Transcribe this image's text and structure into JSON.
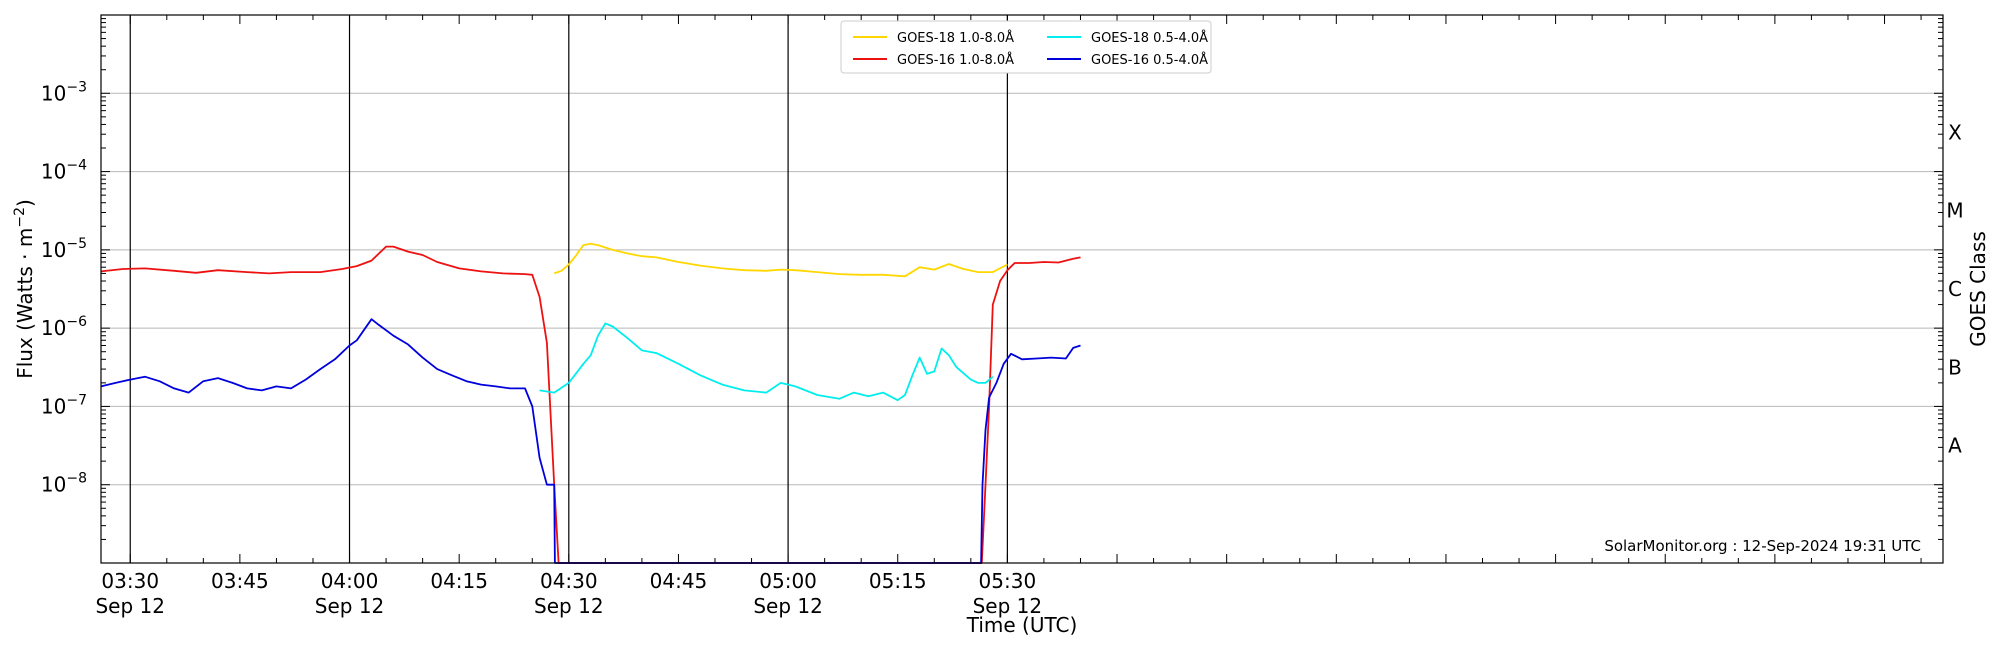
{
  "chart_data": {
    "type": "line",
    "xlabel": "Time (UTC)",
    "ylabel": "Flux (Watts · m",
    "ylabel_sup": "−2",
    "ylabel_close": ")",
    "y2label": "GOES Class",
    "watermark": "SolarMonitor.org : 12-Sep-2024 19:31 UTC",
    "x_range_minutes": [
      206,
      458
    ],
    "y_log_range": [
      -9,
      -2
    ],
    "grid": true,
    "legend_position": "top-center",
    "x_ticks": [
      {
        "minutes": 210,
        "time": "03:30",
        "date": "Sep 12"
      },
      {
        "minutes": 225,
        "time": "03:45",
        "date": ""
      },
      {
        "minutes": 240,
        "time": "04:00",
        "date": "Sep 12"
      },
      {
        "minutes": 255,
        "time": "04:15",
        "date": ""
      },
      {
        "minutes": 270,
        "time": "04:30",
        "date": "Sep 12"
      },
      {
        "minutes": 285,
        "time": "04:45",
        "date": ""
      },
      {
        "minutes": 300,
        "time": "05:00",
        "date": "Sep 12"
      },
      {
        "minutes": 315,
        "time": "05:15",
        "date": ""
      },
      {
        "minutes": 330,
        "time": "05:30",
        "date": "Sep 12"
      }
    ],
    "vertical_lines_minutes": [
      210,
      240,
      270,
      300,
      330
    ],
    "y_ticks": [
      {
        "exp": -8,
        "label": "10",
        "sup": "−8"
      },
      {
        "exp": -7,
        "label": "10",
        "sup": "−7"
      },
      {
        "exp": -6,
        "label": "10",
        "sup": "−6"
      },
      {
        "exp": -5,
        "label": "10",
        "sup": "−5"
      },
      {
        "exp": -4,
        "label": "10",
        "sup": "−4"
      },
      {
        "exp": -3,
        "label": "10",
        "sup": "−3"
      }
    ],
    "goes_classes": [
      {
        "label": "A",
        "exp": -7.5
      },
      {
        "label": "B",
        "exp": -6.5
      },
      {
        "label": "C",
        "exp": -5.5
      },
      {
        "label": "M",
        "exp": -4.5
      },
      {
        "label": "X",
        "exp": -3.5
      }
    ],
    "series": [
      {
        "name": "GOES-18 1.0-8.0Å",
        "color": "#ffd700",
        "points": [
          [
            268,
            5e-06
          ],
          [
            269,
            5.4e-06
          ],
          [
            270,
            6.5e-06
          ],
          [
            271,
            8.5e-06
          ],
          [
            272,
            1.15e-05
          ],
          [
            273,
            1.2e-05
          ],
          [
            274,
            1.15e-05
          ],
          [
            276,
            1e-05
          ],
          [
            278,
            9e-06
          ],
          [
            280,
            8.3e-06
          ],
          [
            282,
            8e-06
          ],
          [
            285,
            7e-06
          ],
          [
            288,
            6.3e-06
          ],
          [
            291,
            5.8e-06
          ],
          [
            294,
            5.5e-06
          ],
          [
            297,
            5.4e-06
          ],
          [
            299,
            5.6e-06
          ],
          [
            301,
            5.5e-06
          ],
          [
            304,
            5.2e-06
          ],
          [
            307,
            4.9e-06
          ],
          [
            310,
            4.8e-06
          ],
          [
            313,
            4.8e-06
          ],
          [
            316,
            4.6e-06
          ],
          [
            318,
            6e-06
          ],
          [
            320,
            5.6e-06
          ],
          [
            322,
            6.6e-06
          ],
          [
            324,
            5.7e-06
          ],
          [
            326,
            5.2e-06
          ],
          [
            328,
            5.2e-06
          ],
          [
            330,
            6.5e-06
          ]
        ]
      },
      {
        "name": "GOES-16 1.0-8.0Å",
        "color": "#ee1111",
        "points": [
          [
            206,
            5.3e-06
          ],
          [
            209,
            5.7e-06
          ],
          [
            212,
            5.8e-06
          ],
          [
            216,
            5.4e-06
          ],
          [
            219,
            5.1e-06
          ],
          [
            222,
            5.5e-06
          ],
          [
            226,
            5.2e-06
          ],
          [
            229,
            5e-06
          ],
          [
            232,
            5.2e-06
          ],
          [
            236,
            5.2e-06
          ],
          [
            239,
            5.7e-06
          ],
          [
            241,
            6.2e-06
          ],
          [
            243,
            7.3e-06
          ],
          [
            245,
            1.1e-05
          ],
          [
            246,
            1.1e-05
          ],
          [
            248,
            9.5e-06
          ],
          [
            250,
            8.6e-06
          ],
          [
            252,
            7e-06
          ],
          [
            255,
            5.8e-06
          ],
          [
            258,
            5.3e-06
          ],
          [
            261,
            5e-06
          ],
          [
            264,
            4.9e-06
          ],
          [
            265,
            4.8e-06
          ],
          [
            266,
            2.5e-06
          ],
          [
            267,
            6.5e-07
          ],
          [
            268,
            1e-08
          ],
          [
            268.6,
            1e-09
          ],
          [
            326.5,
            1e-09
          ],
          [
            327,
            1e-08
          ],
          [
            327.5,
            1e-07
          ],
          [
            328,
            2e-06
          ],
          [
            329,
            4e-06
          ],
          [
            330,
            5.5e-06
          ],
          [
            331,
            6.8e-06
          ],
          [
            333,
            6.8e-06
          ],
          [
            335,
            7e-06
          ],
          [
            337,
            6.9e-06
          ],
          [
            339,
            7.7e-06
          ],
          [
            340,
            8e-06
          ]
        ]
      },
      {
        "name": "GOES-18 0.5-4.0Å",
        "color": "#00eeee",
        "points": [
          [
            266,
            1.6e-07
          ],
          [
            268,
            1.5e-07
          ],
          [
            270,
            2e-07
          ],
          [
            272,
            3.5e-07
          ],
          [
            273,
            4.5e-07
          ],
          [
            274,
            8e-07
          ],
          [
            275,
            1.15e-06
          ],
          [
            276,
            1.05e-06
          ],
          [
            278,
            7.5e-07
          ],
          [
            280,
            5.2e-07
          ],
          [
            282,
            4.8e-07
          ],
          [
            285,
            3.5e-07
          ],
          [
            288,
            2.5e-07
          ],
          [
            291,
            1.9e-07
          ],
          [
            294,
            1.6e-07
          ],
          [
            297,
            1.5e-07
          ],
          [
            299,
            2e-07
          ],
          [
            301,
            1.8e-07
          ],
          [
            304,
            1.4e-07
          ],
          [
            307,
            1.25e-07
          ],
          [
            309,
            1.5e-07
          ],
          [
            311,
            1.35e-07
          ],
          [
            313,
            1.5e-07
          ],
          [
            315,
            1.2e-07
          ],
          [
            316,
            1.4e-07
          ],
          [
            317,
            2.5e-07
          ],
          [
            318,
            4.2e-07
          ],
          [
            319,
            2.6e-07
          ],
          [
            320,
            2.8e-07
          ],
          [
            321,
            5.5e-07
          ],
          [
            322,
            4.5e-07
          ],
          [
            323,
            3.2e-07
          ],
          [
            325,
            2.2e-07
          ],
          [
            326,
            2e-07
          ],
          [
            327,
            2e-07
          ],
          [
            328,
            2.4e-07
          ]
        ]
      },
      {
        "name": "GOES-16 0.5-4.0Å",
        "color": "#0000dd",
        "points": [
          [
            206,
            1.8e-07
          ],
          [
            208,
            2e-07
          ],
          [
            210,
            2.2e-07
          ],
          [
            212,
            2.4e-07
          ],
          [
            214,
            2.1e-07
          ],
          [
            216,
            1.7e-07
          ],
          [
            218,
            1.5e-07
          ],
          [
            220,
            2.1e-07
          ],
          [
            222,
            2.3e-07
          ],
          [
            224,
            2e-07
          ],
          [
            226,
            1.7e-07
          ],
          [
            228,
            1.6e-07
          ],
          [
            230,
            1.8e-07
          ],
          [
            232,
            1.7e-07
          ],
          [
            234,
            2.2e-07
          ],
          [
            236,
            3e-07
          ],
          [
            238,
            4e-07
          ],
          [
            240,
            6e-07
          ],
          [
            241,
            7e-07
          ],
          [
            243,
            1.3e-06
          ],
          [
            244,
            1.1e-06
          ],
          [
            246,
            8e-07
          ],
          [
            248,
            6.2e-07
          ],
          [
            250,
            4.2e-07
          ],
          [
            252,
            3e-07
          ],
          [
            254,
            2.5e-07
          ],
          [
            256,
            2.1e-07
          ],
          [
            258,
            1.9e-07
          ],
          [
            260,
            1.8e-07
          ],
          [
            262,
            1.7e-07
          ],
          [
            264,
            1.7e-07
          ],
          [
            265,
            1e-07
          ],
          [
            266,
            2.2e-08
          ],
          [
            267,
            1e-08
          ],
          [
            268,
            1e-08
          ],
          [
            268.1,
            1e-09
          ],
          [
            326.4,
            1e-09
          ],
          [
            326.6,
            1e-08
          ],
          [
            327,
            5e-08
          ],
          [
            327.5,
            1.3e-07
          ],
          [
            328.5,
            2e-07
          ],
          [
            329.5,
            3.5e-07
          ],
          [
            330.5,
            4.7e-07
          ],
          [
            332,
            4e-07
          ],
          [
            334,
            4.1e-07
          ],
          [
            336,
            4.2e-07
          ],
          [
            338,
            4.1e-07
          ],
          [
            339,
            5.6e-07
          ],
          [
            340,
            6e-07
          ]
        ]
      }
    ]
  }
}
